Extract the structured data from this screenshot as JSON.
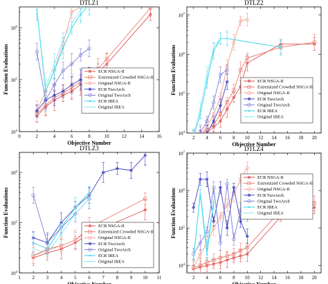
{
  "colors": {
    "ecr_nsga2": "#d9534f",
    "extremized_nsga2": "#e8796e",
    "original_nsga2": "#f29c8f",
    "ecr_twoarch": "#3f3fbf",
    "original_twoarch": "#7b7bd6",
    "ecr_ibea": "#2ed3e6",
    "original_ibea": "#7fe8f2"
  },
  "chart_data": [
    {
      "type": "line",
      "title": "DTLZ1",
      "xlabel": "Objective Number",
      "ylabel": "Function Evaluations",
      "xlim": [
        0,
        16
      ],
      "xticks": [
        "0",
        "2",
        "4",
        "6",
        "8",
        "10",
        "12",
        "14",
        "16"
      ],
      "ylim_log10": [
        4,
        6.4
      ],
      "ytick_exponents": [
        "4",
        "5",
        "6"
      ],
      "yscale": "log",
      "legend": "bottom-right",
      "series": [
        {
          "name": "ECR NSGA-II",
          "x": [
            2,
            3,
            4,
            5,
            6,
            7,
            8,
            9,
            10,
            15
          ],
          "y": [
            20000,
            30000,
            40000,
            50000,
            60000,
            80000,
            100000,
            140000,
            200000,
            1800000
          ]
        },
        {
          "name": "Extremized Crowded NSGA-II",
          "x": [
            2,
            3,
            4,
            5,
            6,
            7,
            8,
            9,
            10,
            15
          ],
          "y": [
            22000,
            32000,
            45000,
            55000,
            70000,
            90000,
            120000,
            160000,
            250000,
            2400000
          ]
        },
        {
          "name": "Original NSGA-II",
          "x": [
            2,
            3,
            4,
            5,
            6,
            7
          ],
          "y": [
            25000,
            60000,
            150000,
            500000,
            2000000,
            2500000
          ]
        },
        {
          "name": "ECR TwoArch",
          "x": [
            2,
            3,
            4,
            5,
            6,
            7,
            8
          ],
          "y": [
            25000,
            40000,
            50000,
            60000,
            80000,
            100000,
            130000
          ]
        },
        {
          "name": "Original TwoArch",
          "x": [
            2,
            3,
            4,
            5,
            6,
            7,
            8
          ],
          "y": [
            350000,
            40000,
            80000,
            150000,
            200000,
            300000,
            400000
          ]
        },
        {
          "name": "ECR IBEA",
          "x": [
            2,
            3,
            4,
            5,
            6,
            7,
            8
          ],
          "y": [
            2200000,
            60000,
            150000,
            400000,
            1000000,
            1800000,
            2800000
          ]
        },
        {
          "name": "Original IBEA",
          "x": [
            2,
            3,
            4,
            5,
            6,
            7,
            8
          ],
          "y": [
            2500000,
            70000,
            200000,
            600000,
            1200000,
            2200000,
            3000000
          ]
        }
      ]
    },
    {
      "type": "line",
      "title": "DTLZ2",
      "xlabel": "Objective Number",
      "ylabel": "Function Evaluations",
      "xlim": [
        1,
        21
      ],
      "xticks": [
        "2",
        "4",
        "6",
        "8",
        "10",
        "12",
        "14",
        "16",
        "18",
        "20"
      ],
      "ylim_log10": [
        4,
        7.2
      ],
      "ytick_exponents": [
        "4",
        "5",
        "6",
        "7"
      ],
      "yscale": "log",
      "legend": "bottom-right",
      "series": [
        {
          "name": "ECR NSGA-II",
          "x": [
            2,
            3,
            4,
            5,
            6,
            7,
            8,
            9,
            10,
            15,
            20
          ],
          "y": [
            6000,
            8000,
            10000,
            14000,
            20000,
            40000,
            80000,
            150000,
            600000,
            1800000,
            1800000
          ]
        },
        {
          "name": "Extremized Crowded NSGA-II",
          "x": [
            2,
            3,
            4,
            5,
            6,
            7,
            8,
            9,
            10,
            15,
            20
          ],
          "y": [
            7000,
            9000,
            12000,
            16000,
            30000,
            60000,
            120000,
            400000,
            800000,
            1500000,
            2000000
          ]
        },
        {
          "name": "Original NSGA-II",
          "x": [
            2,
            3,
            4,
            5,
            6,
            7,
            8,
            9,
            10
          ],
          "y": [
            7000,
            9000,
            14000,
            30000,
            80000,
            500000,
            2000000,
            7000000,
            7500000
          ]
        },
        {
          "name": "ECR TwoArch",
          "x": [
            2,
            3,
            4,
            5,
            6,
            7
          ],
          "y": [
            6000,
            8000,
            10000,
            20000,
            50000,
            200000
          ]
        },
        {
          "name": "Original TwoArch",
          "x": [
            2,
            3,
            4,
            5,
            6,
            7
          ],
          "y": [
            8000,
            10000,
            20000,
            60000,
            300000,
            400000
          ]
        },
        {
          "name": "ECR IBEA",
          "x": [
            2,
            3,
            4,
            5,
            6,
            7,
            15
          ],
          "y": [
            8000,
            30000,
            200000,
            1200000,
            2500000,
            2500000,
            1500000
          ]
        },
        {
          "name": "Original IBEA",
          "x": [
            2,
            3,
            4,
            5,
            6,
            7
          ],
          "y": [
            9000,
            40000,
            300000,
            1500000,
            2500000,
            2500000
          ]
        }
      ]
    },
    {
      "type": "line",
      "title": "DTLZ3",
      "xlabel": "Objective Number",
      "ylabel": "Function Evaluations",
      "xlim": [
        1,
        11
      ],
      "xticks": [
        "1",
        "2",
        "3",
        "4",
        "5",
        "6",
        "7",
        "8",
        "9",
        "10",
        "11"
      ],
      "ylim_log10": [
        4,
        6.4
      ],
      "ytick_exponents": [
        "4",
        "5",
        "6"
      ],
      "yscale": "log",
      "legend": "bottom-right",
      "series": [
        {
          "name": "ECR NSGA-II",
          "x": [
            2,
            3,
            4,
            5,
            6,
            10
          ],
          "y": [
            20000,
            25000,
            30000,
            40000,
            60000,
            180000
          ]
        },
        {
          "name": "Extremized Crowded NSGA-II",
          "x": [
            2,
            3,
            4,
            5,
            6,
            10
          ],
          "y": [
            22000,
            30000,
            35000,
            45000,
            80000,
            300000
          ]
        },
        {
          "name": "Original NSGA-II",
          "x": [
            2,
            3,
            4,
            5,
            6
          ],
          "y": [
            22000,
            28000,
            35000,
            45000,
            70000
          ]
        },
        {
          "name": "ECR TwoArch",
          "x": [
            2,
            3,
            4,
            5,
            6,
            7,
            8,
            9,
            10
          ],
          "y": [
            50000,
            40000,
            100000,
            200000,
            350000,
            1000000,
            1200000,
            1100000,
            2200000
          ]
        },
        {
          "name": "Original TwoArch",
          "x": [
            2,
            3,
            4,
            5,
            6
          ],
          "y": [
            350000,
            40000,
            80000,
            150000,
            300000
          ]
        },
        {
          "name": "ECR IBEA",
          "x": [
            2,
            3,
            4,
            5,
            6
          ],
          "y": [
            40000,
            30000,
            80000,
            200000,
            400000
          ]
        },
        {
          "name": "Original IBEA",
          "x": [
            2,
            3,
            4,
            5,
            6
          ],
          "y": [
            30000,
            25000,
            60000,
            150000,
            300000
          ]
        }
      ]
    },
    {
      "type": "line",
      "title": "DTLZ4",
      "xlabel": "Objective Number",
      "ylabel": "Function Evaluations",
      "xlim": [
        1,
        21
      ],
      "xticks": [
        "2",
        "4",
        "6",
        "8",
        "10",
        "12",
        "14",
        "16",
        "18",
        "20"
      ],
      "ylim_log10": [
        3.8,
        7
      ],
      "ytick_exponents": [
        "4",
        "5",
        "6",
        "7"
      ],
      "yscale": "log",
      "legend": "right",
      "series": [
        {
          "name": "ECR NSGA-II",
          "x": [
            2,
            3,
            4,
            5,
            6,
            7,
            8,
            9,
            10,
            15,
            20
          ],
          "y": [
            8000,
            9000,
            10000,
            11000,
            12000,
            14000,
            16000,
            18000,
            20000,
            200000,
            350000
          ]
        },
        {
          "name": "Extremized Crowded NSGA-II",
          "x": [
            2,
            3,
            4,
            5,
            6,
            7,
            8,
            9,
            10,
            15,
            20
          ],
          "y": [
            9000,
            10000,
            12000,
            14000,
            16000,
            18000,
            20000,
            25000,
            30000,
            300000,
            450000
          ]
        },
        {
          "name": "Original NSGA-II",
          "x": [
            2,
            3,
            4,
            5,
            6,
            7,
            8,
            9,
            10
          ],
          "y": [
            9000,
            20000,
            40000,
            100000,
            200000,
            400000,
            800000,
            2000000,
            4000000
          ]
        },
        {
          "name": "ECR TwoArch",
          "x": [
            2,
            3,
            4,
            5,
            6,
            7,
            8,
            9,
            10
          ],
          "y": [
            350000,
            2000000,
            2000000,
            150000,
            1200000,
            100000,
            1200000,
            150000,
            60000
          ]
        },
        {
          "name": "Original TwoArch",
          "x": [
            2,
            3,
            4,
            5,
            6,
            7,
            8,
            9,
            10
          ],
          "y": [
            20000,
            40000,
            80000,
            1200000,
            40000,
            1500000,
            50000,
            300000,
            200000
          ]
        },
        {
          "name": "ECR IBEA",
          "x": [
            2,
            3,
            4,
            5
          ],
          "y": [
            15000,
            800000,
            20000,
            500000
          ]
        },
        {
          "name": "Original IBEA",
          "x": [
            2,
            3,
            4,
            5
          ],
          "y": [
            18000,
            1000000,
            30000,
            600000
          ]
        }
      ]
    }
  ]
}
